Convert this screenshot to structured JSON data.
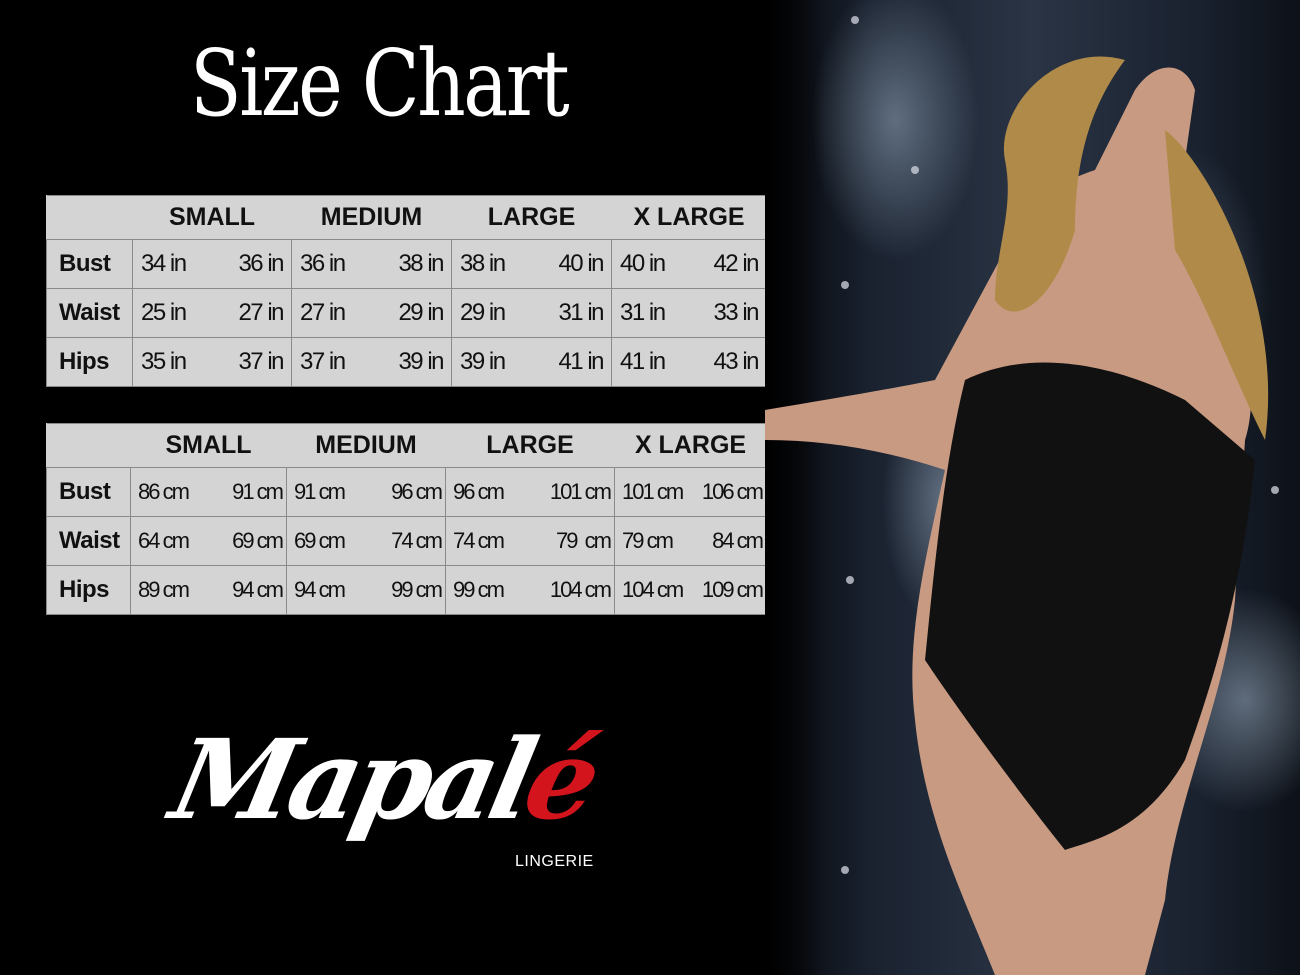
{
  "title": "Size Chart",
  "imperial_table": {
    "sizes": [
      "SMALL",
      "MEDIUM",
      "LARGE",
      "X LARGE"
    ],
    "rows": [
      {
        "label": "Bust",
        "values": [
          [
            "34 in",
            "36 in"
          ],
          [
            "36 in",
            "38 in"
          ],
          [
            "38 in",
            "40 in"
          ],
          [
            "40 in",
            "42 in"
          ]
        ]
      },
      {
        "label": "Waist",
        "values": [
          [
            "25 in",
            "27 in"
          ],
          [
            "27 in",
            "29 in"
          ],
          [
            "29 in",
            "31 in"
          ],
          [
            "31 in",
            "33 in"
          ]
        ]
      },
      {
        "label": "Hips",
        "values": [
          [
            "35 in",
            "37 in"
          ],
          [
            "37 in",
            "39 in"
          ],
          [
            "39 in",
            "41 in"
          ],
          [
            "41 in",
            "43 in"
          ]
        ]
      }
    ]
  },
  "metric_table": {
    "sizes": [
      "SMALL",
      "MEDIUM",
      "LARGE",
      "X LARGE"
    ],
    "rows": [
      {
        "label": "Bust",
        "values": [
          [
            "86 cm",
            "91 cm"
          ],
          [
            "91 cm",
            "96 cm"
          ],
          [
            "96 cm",
            "101 cm"
          ],
          [
            "101 cm",
            "106 cm"
          ]
        ]
      },
      {
        "label": "Waist",
        "values": [
          [
            "64 cm",
            "69 cm"
          ],
          [
            "69 cm",
            "74 cm"
          ],
          [
            "74 cm",
            "79  cm"
          ],
          [
            "79 cm",
            "84 cm"
          ]
        ]
      },
      {
        "label": "Hips",
        "values": [
          [
            "89 cm",
            "94 cm"
          ],
          [
            "94 cm",
            "99 cm"
          ],
          [
            "99 cm",
            "104 cm"
          ],
          [
            "104 cm",
            "109 cm"
          ]
        ]
      }
    ]
  },
  "brand": {
    "logo_main": "Mapal",
    "logo_accent": "é",
    "logo_sub": "LINGERIE",
    "accent_color": "#d4141c"
  }
}
